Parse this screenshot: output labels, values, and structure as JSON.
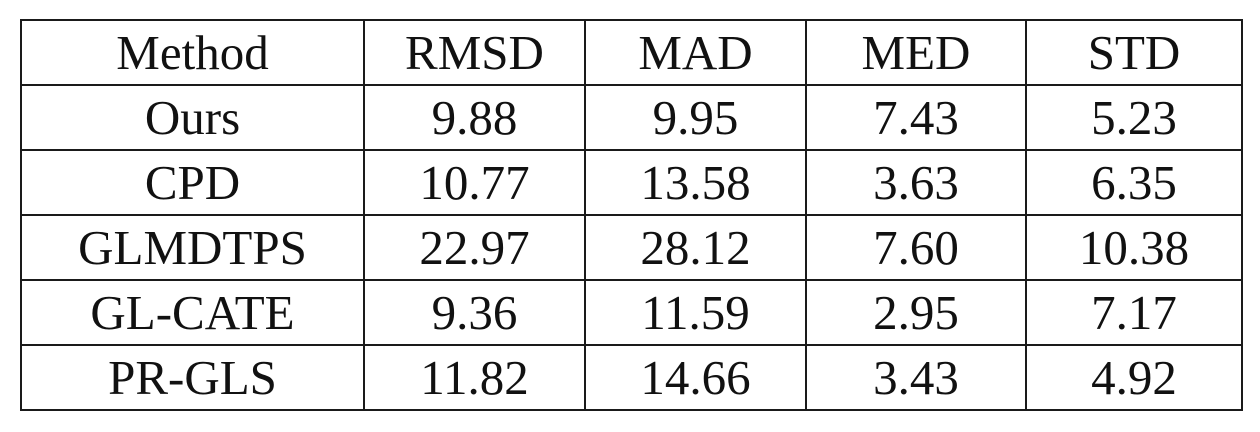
{
  "table": {
    "headers": [
      "Method",
      "RMSD",
      "MAD",
      "MED",
      "STD"
    ],
    "rows": [
      [
        "Ours",
        "9.88",
        "9.95",
        "7.43",
        "5.23"
      ],
      [
        "CPD",
        "10.77",
        "13.58",
        "3.63",
        "6.35"
      ],
      [
        "GLMDTPS",
        "22.97",
        "28.12",
        "7.60",
        "10.38"
      ],
      [
        "GL-CATE",
        "9.36",
        "11.59",
        "2.95",
        "7.17"
      ],
      [
        "PR-GLS",
        "11.82",
        "14.66",
        "3.43",
        "4.92"
      ]
    ]
  }
}
